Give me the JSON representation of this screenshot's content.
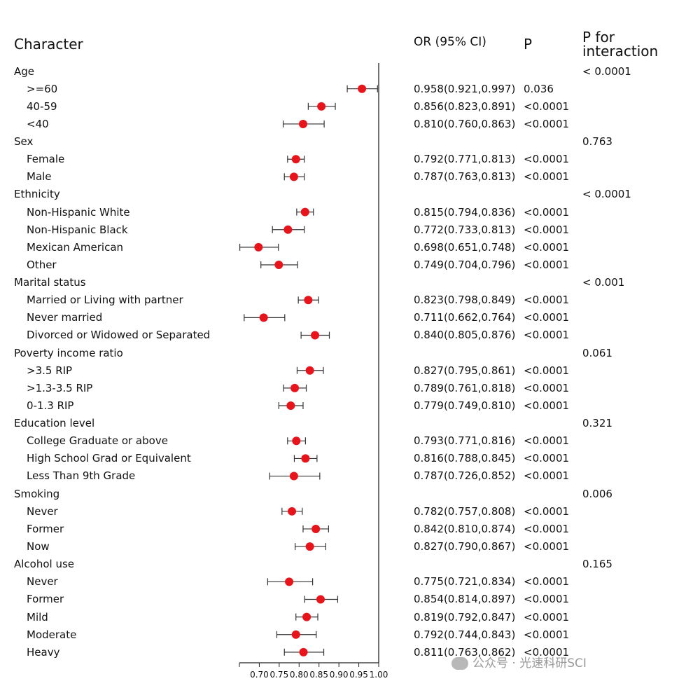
{
  "headers": {
    "character": "Character",
    "or": "OR (95% CI)",
    "p": "P",
    "p_interaction_line1": "P for",
    "p_interaction_line2": "interaction"
  },
  "rows": [
    {
      "label": "Age",
      "group": true,
      "p_interaction": "< 0.0001"
    },
    {
      "label": ">=60",
      "or_text": "0.958(0.921,0.997)",
      "p": "0.036"
    },
    {
      "label": "40-59",
      "or_text": "0.856(0.823,0.891)",
      "p": "<0.0001"
    },
    {
      "label": "<40",
      "or_text": "0.810(0.760,0.863)",
      "p": "<0.0001"
    },
    {
      "label": "Sex",
      "group": true,
      "p_interaction": "0.763"
    },
    {
      "label": "Female",
      "or_text": "0.792(0.771,0.813)",
      "p": "<0.0001"
    },
    {
      "label": "Male",
      "or_text": "0.787(0.763,0.813)",
      "p": "<0.0001"
    },
    {
      "label": "Ethnicity",
      "group": true,
      "p_interaction": "< 0.0001"
    },
    {
      "label": "Non-Hispanic White",
      "or_text": "0.815(0.794,0.836)",
      "p": "<0.0001"
    },
    {
      "label": "Non-Hispanic Black",
      "or_text": "0.772(0.733,0.813)",
      "p": "<0.0001"
    },
    {
      "label": "Mexican American",
      "or_text": "0.698(0.651,0.748)",
      "p": "<0.0001"
    },
    {
      "label": "Other",
      "or_text": "0.749(0.704,0.796)",
      "p": "<0.0001"
    },
    {
      "label": "Marital status",
      "group": true,
      "p_interaction": "< 0.001"
    },
    {
      "label": "Married or Living with partner",
      "or_text": "0.823(0.798,0.849)",
      "p": "<0.0001"
    },
    {
      "label": "Never married",
      "or_text": "0.711(0.662,0.764)",
      "p": "<0.0001"
    },
    {
      "label": "Divorced or Widowed or Separated",
      "or_text": "0.840(0.805,0.876)",
      "p": "<0.0001"
    },
    {
      "label": "Poverty income ratio",
      "group": true,
      "p_interaction": "0.061"
    },
    {
      "label": ">3.5 RIP",
      "or_text": "0.827(0.795,0.861)",
      "p": "<0.0001"
    },
    {
      "label": ">1.3-3.5 RIP",
      "or_text": "0.789(0.761,0.818)",
      "p": "<0.0001"
    },
    {
      "label": "0-1.3 RIP",
      "or_text": "0.779(0.749,0.810)",
      "p": "<0.0001"
    },
    {
      "label": "Education level",
      "group": true,
      "p_interaction": "0.321"
    },
    {
      "label": "College Graduate or above",
      "or_text": "0.793(0.771,0.816)",
      "p": "<0.0001"
    },
    {
      "label": "High School Grad or Equivalent",
      "or_text": "0.816(0.788,0.845)",
      "p": "<0.0001"
    },
    {
      "label": "Less Than 9th Grade",
      "or_text": "0.787(0.726,0.852)",
      "p": "<0.0001"
    },
    {
      "label": "Smoking",
      "group": true,
      "p_interaction": "0.006"
    },
    {
      "label": "Never",
      "or_text": "0.782(0.757,0.808)",
      "p": "<0.0001"
    },
    {
      "label": "Former",
      "or_text": "0.842(0.810,0.874)",
      "p": "<0.0001"
    },
    {
      "label": "Now",
      "or_text": "0.827(0.790,0.867)",
      "p": "<0.0001"
    },
    {
      "label": "Alcohol use",
      "group": true,
      "p_interaction": "0.165"
    },
    {
      "label": "Never",
      "or_text": "0.775(0.721,0.834)",
      "p": "<0.0001"
    },
    {
      "label": "Former",
      "or_text": "0.854(0.814,0.897)",
      "p": "<0.0001"
    },
    {
      "label": "Mild",
      "or_text": "0.819(0.792,0.847)",
      "p": "<0.0001"
    },
    {
      "label": "Moderate",
      "or_text": "0.792(0.744,0.843)",
      "p": "<0.0001"
    },
    {
      "label": "Heavy",
      "or_text": "0.811(0.763,0.862)",
      "p": "<0.0001"
    }
  ],
  "chart_data": {
    "type": "scatter",
    "subtype": "forest",
    "xlim": [
      0.65,
      1.0
    ],
    "reference_line": 1.0,
    "x_ticks": [
      "0.70",
      "0.75",
      "0.80",
      "0.85",
      "0.90",
      "0.95",
      "1.00"
    ],
    "marker_color": "#e8141b",
    "points": [
      {
        "category": ">=60",
        "or": 0.958,
        "lo": 0.921,
        "hi": 0.997
      },
      {
        "category": "40-59",
        "or": 0.856,
        "lo": 0.823,
        "hi": 0.891
      },
      {
        "category": "<40",
        "or": 0.81,
        "lo": 0.76,
        "hi": 0.863
      },
      {
        "category": "Female",
        "or": 0.792,
        "lo": 0.771,
        "hi": 0.813
      },
      {
        "category": "Male",
        "or": 0.787,
        "lo": 0.763,
        "hi": 0.813
      },
      {
        "category": "Non-Hispanic White",
        "or": 0.815,
        "lo": 0.794,
        "hi": 0.836
      },
      {
        "category": "Non-Hispanic Black",
        "or": 0.772,
        "lo": 0.733,
        "hi": 0.813
      },
      {
        "category": "Mexican American",
        "or": 0.698,
        "lo": 0.651,
        "hi": 0.748
      },
      {
        "category": "Other",
        "or": 0.749,
        "lo": 0.704,
        "hi": 0.796
      },
      {
        "category": "Married or Living with partner",
        "or": 0.823,
        "lo": 0.798,
        "hi": 0.849
      },
      {
        "category": "Never married",
        "or": 0.711,
        "lo": 0.662,
        "hi": 0.764
      },
      {
        "category": "Divorced or Widowed or Separated",
        "or": 0.84,
        "lo": 0.805,
        "hi": 0.876
      },
      {
        "category": ">3.5 RIP",
        "or": 0.827,
        "lo": 0.795,
        "hi": 0.861
      },
      {
        "category": ">1.3-3.5 RIP",
        "or": 0.789,
        "lo": 0.761,
        "hi": 0.818
      },
      {
        "category": "0-1.3 RIP",
        "or": 0.779,
        "lo": 0.749,
        "hi": 0.81
      },
      {
        "category": "College Graduate or above",
        "or": 0.793,
        "lo": 0.771,
        "hi": 0.816
      },
      {
        "category": "High School Grad or Equivalent",
        "or": 0.816,
        "lo": 0.788,
        "hi": 0.845
      },
      {
        "category": "Less Than 9th Grade",
        "or": 0.787,
        "lo": 0.726,
        "hi": 0.852
      },
      {
        "category": "Never",
        "or": 0.782,
        "lo": 0.757,
        "hi": 0.808
      },
      {
        "category": "Former",
        "or": 0.842,
        "lo": 0.81,
        "hi": 0.874
      },
      {
        "category": "Now",
        "or": 0.827,
        "lo": 0.79,
        "hi": 0.867
      },
      {
        "category": "Never",
        "or": 0.775,
        "lo": 0.721,
        "hi": 0.834
      },
      {
        "category": "Former",
        "or": 0.854,
        "lo": 0.814,
        "hi": 0.897
      },
      {
        "category": "Mild",
        "or": 0.819,
        "lo": 0.792,
        "hi": 0.847
      },
      {
        "category": "Moderate",
        "or": 0.792,
        "lo": 0.744,
        "hi": 0.843
      },
      {
        "category": "Heavy",
        "or": 0.811,
        "lo": 0.763,
        "hi": 0.862
      }
    ]
  },
  "watermark": {
    "icon": "wechat-icon",
    "text": "公众号 · 光速科研SCI"
  }
}
